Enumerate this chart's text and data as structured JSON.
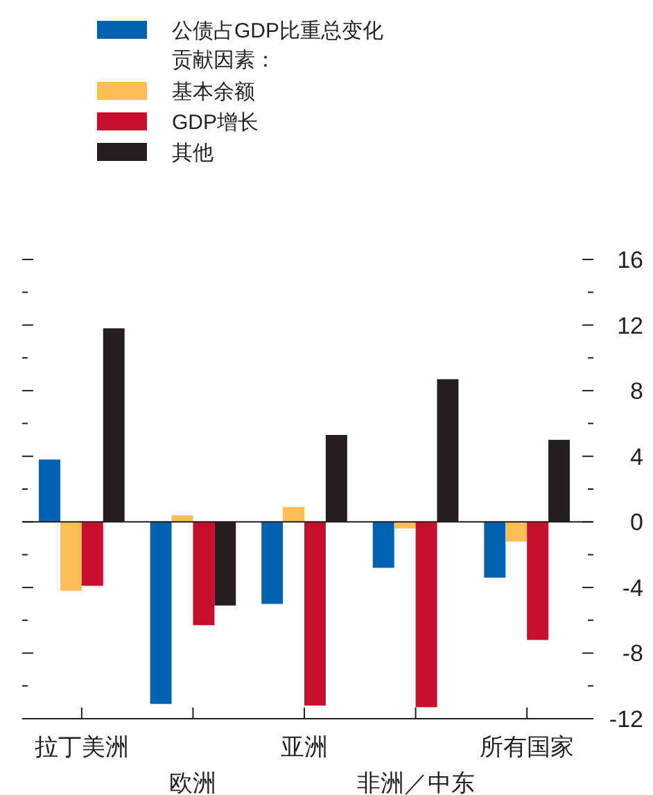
{
  "chart_data": {
    "type": "bar",
    "categories": [
      "拉丁美洲",
      "欧洲",
      "亚洲",
      "非洲／中东",
      "所有国家"
    ],
    "legend_title": "贡献因素：",
    "series": [
      {
        "name": "公债占GDP比重总变化",
        "color": "#0061ae",
        "values": [
          3.8,
          -11.1,
          -5.0,
          -2.8,
          -3.4
        ]
      },
      {
        "name": "基本余额",
        "color": "#fdbd57",
        "values": [
          -4.2,
          0.4,
          0.9,
          -0.4,
          -1.2
        ]
      },
      {
        "name": "GDP增长",
        "color": "#c8102e",
        "values": [
          -3.9,
          -6.3,
          -11.2,
          -11.3,
          -7.2
        ]
      },
      {
        "name": "其他",
        "color": "#231f20",
        "values": [
          11.8,
          -5.1,
          5.3,
          8.7,
          5.0
        ]
      }
    ],
    "ylim": [
      -12,
      16
    ],
    "yticks": [
      {
        "value": -12,
        "label": "-12"
      },
      {
        "value": -10,
        "label": null
      },
      {
        "value": -8,
        "label": "-8"
      },
      {
        "value": -6,
        "label": null
      },
      {
        "value": -4,
        "label": "-4"
      },
      {
        "value": -2,
        "label": null
      },
      {
        "value": 0,
        "label": "0"
      },
      {
        "value": 2,
        "label": null
      },
      {
        "value": 4,
        "label": "4"
      },
      {
        "value": 6,
        "label": null
      },
      {
        "value": 8,
        "label": "8"
      },
      {
        "value": 10,
        "label": null
      },
      {
        "value": 12,
        "label": "12"
      },
      {
        "value": 14,
        "label": null
      },
      {
        "value": 16,
        "label": "16"
      }
    ],
    "legend": "top left"
  }
}
